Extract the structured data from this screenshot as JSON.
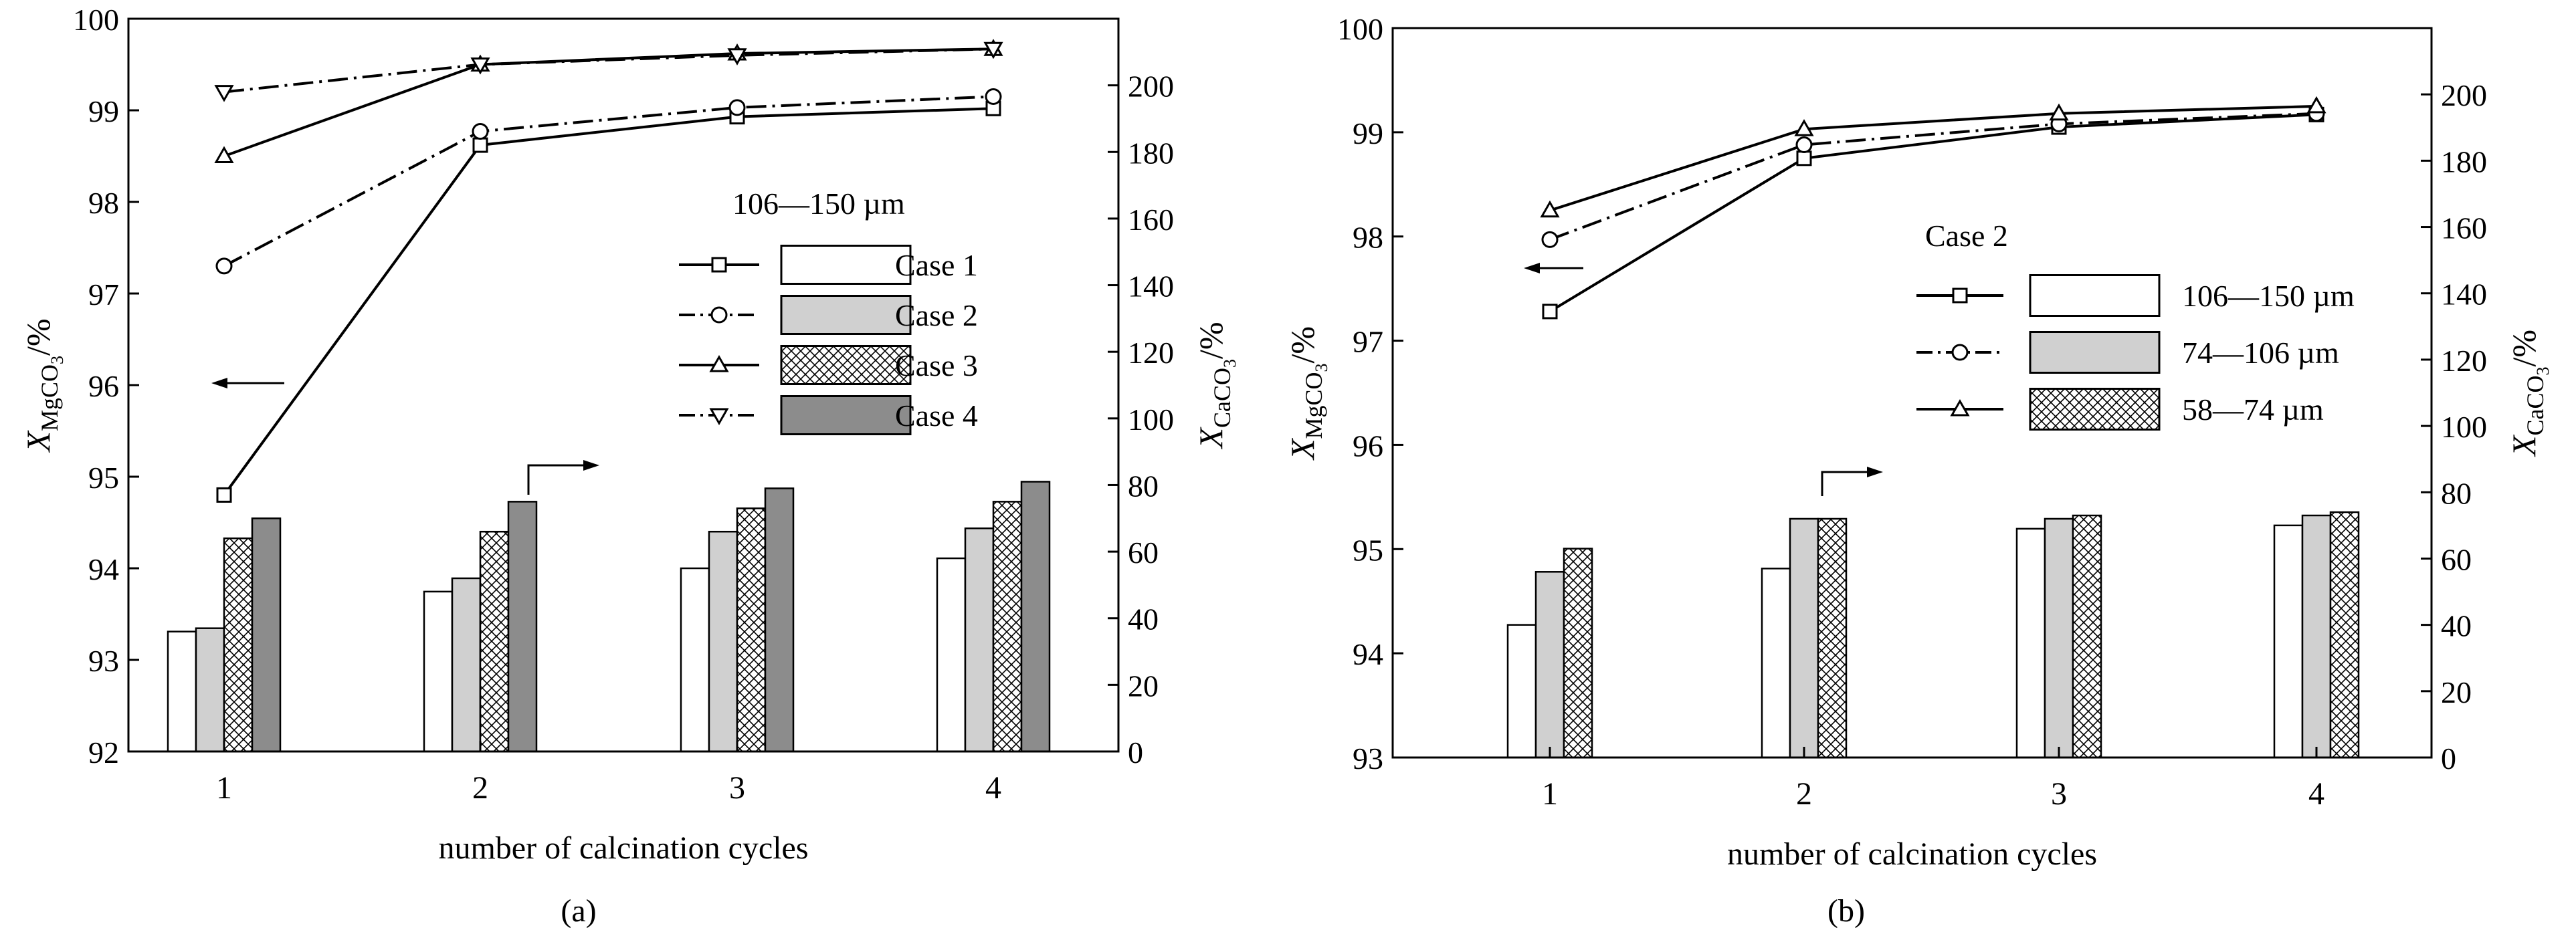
{
  "colors": {
    "axis": "#000000",
    "bar_light": "#ffffff",
    "bar_mid": "#d0d0d0",
    "bar_dark": "#8c8c8c"
  },
  "chart_data": [
    {
      "type": "bar+line",
      "panel_label": "(a)",
      "xlabel": "number of calcination cycles",
      "ylabel_left": {
        "var": "X",
        "sub": "MgCO",
        "sub2": "3",
        "unit": "/%"
      },
      "ylabel_right": {
        "var": "X",
        "sub": "CaCO",
        "sub2": "3",
        "unit": "/%"
      },
      "categories": [
        "1",
        "2",
        "3",
        "4"
      ],
      "ylim_left": [
        92,
        100
      ],
      "yticks_left": [
        "92",
        "93",
        "94",
        "95",
        "96",
        "97",
        "98",
        "99",
        "100"
      ],
      "ylim_right": [
        0,
        220
      ],
      "yticks_right": [
        "0",
        "20",
        "40",
        "60",
        "80",
        "100",
        "120",
        "140",
        "160",
        "180",
        "200"
      ],
      "legend_title": "106—150 µm",
      "series": [
        {
          "name": "Case 1",
          "marker": "square",
          "dash": "solid",
          "fill": "white",
          "line_values": [
            94.8,
            98.62,
            98.93,
            99.02
          ],
          "bar_values": [
            36,
            48,
            55,
            58
          ]
        },
        {
          "name": "Case 2",
          "marker": "circle",
          "dash": "dashdot",
          "fill": "light",
          "line_values": [
            97.3,
            98.77,
            99.03,
            99.15
          ],
          "bar_values": [
            37,
            52,
            66,
            67
          ]
        },
        {
          "name": "Case 3",
          "marker": "triangle-up",
          "dash": "solid",
          "fill": "hatch",
          "line_values": [
            98.5,
            99.5,
            99.62,
            99.67
          ],
          "bar_values": [
            64,
            66,
            73,
            75
          ]
        },
        {
          "name": "Case 4",
          "marker": "triangle-down",
          "dash": "dashdot",
          "fill": "dark",
          "line_values": [
            99.2,
            99.5,
            99.6,
            99.67
          ],
          "bar_values": [
            70,
            75,
            79,
            81
          ]
        }
      ]
    },
    {
      "type": "bar+line",
      "panel_label": "(b)",
      "xlabel": "number of calcination cycles",
      "ylabel_left": {
        "var": "X",
        "sub": "MgCO",
        "sub2": "3",
        "unit": "/%"
      },
      "ylabel_right": {
        "var": "X",
        "sub": "CaCO",
        "sub2": "3",
        "unit": "/%"
      },
      "categories": [
        "1",
        "2",
        "3",
        "4"
      ],
      "ylim_left": [
        93,
        100
      ],
      "yticks_left": [
        "93",
        "94",
        "95",
        "96",
        "97",
        "98",
        "99",
        "100"
      ],
      "ylim_right": [
        0,
        220
      ],
      "yticks_right": [
        "0",
        "20",
        "40",
        "60",
        "80",
        "100",
        "120",
        "140",
        "160",
        "180",
        "200"
      ],
      "legend_title": "Case 2",
      "series": [
        {
          "name": "106—150 µm",
          "marker": "square",
          "dash": "solid",
          "fill": "white",
          "line_values": [
            97.28,
            98.75,
            99.05,
            99.17
          ],
          "bar_values": [
            40,
            57,
            69,
            70
          ]
        },
        {
          "name": "74—106 µm",
          "marker": "circle",
          "dash": "dashdot",
          "fill": "light",
          "line_values": [
            97.97,
            98.88,
            99.08,
            99.18
          ],
          "bar_values": [
            56,
            72,
            72,
            73
          ]
        },
        {
          "name": "58—74 µm",
          "marker": "triangle-up",
          "dash": "solid",
          "fill": "hatch",
          "line_values": [
            98.25,
            99.03,
            99.18,
            99.25
          ],
          "bar_values": [
            63,
            72,
            73,
            74
          ]
        }
      ]
    }
  ]
}
